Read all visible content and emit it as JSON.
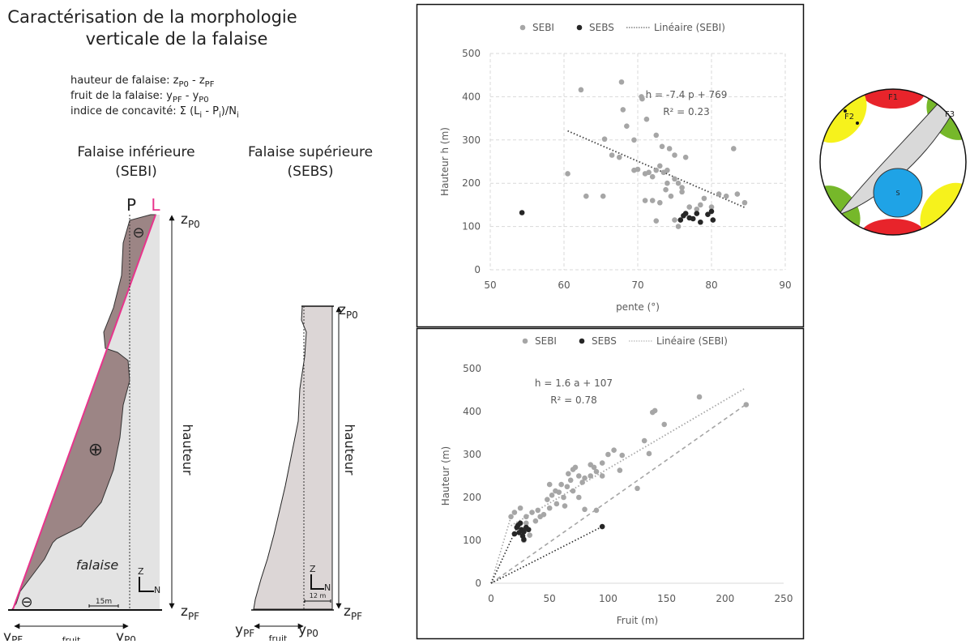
{
  "diagram": {
    "title": [
      "Caractérisation de la morphologie",
      "verticale de la falaise"
    ],
    "formulas": [
      [
        [
          "hauteur de falaise: z",
          "P0"
        ],
        [
          " - z",
          "PF"
        ]
      ],
      [
        [
          "fruit de la falaise: y",
          "PF"
        ],
        [
          " - y",
          "P0"
        ]
      ],
      [
        [
          "indice de concavité: Σ (L",
          "i"
        ],
        [
          " - P",
          "i"
        ],
        [
          ")/N",
          "i"
        ]
      ]
    ],
    "lower": {
      "title": [
        "Falaise inférieure",
        "(SEBI)"
      ],
      "P": "P",
      "L": "L",
      "z_top": [
        "z",
        "P0"
      ],
      "z_bottom": [
        "z",
        "PF"
      ],
      "height": "hauteur",
      "cliff": "falaise",
      "plus": "⊕",
      "minus": [
        "⊖",
        "⊖"
      ],
      "axis_z": "Z",
      "axis_n": "N",
      "scale": "15m",
      "y_left": [
        "y",
        "PF"
      ],
      "y_right": [
        "y",
        "P0"
      ],
      "fruit": "fruit"
    },
    "upper": {
      "title": [
        "Falaise supérieure",
        "(SEBS)"
      ],
      "z_top": [
        "z",
        "P0"
      ],
      "z_bottom": [
        "z",
        "PF"
      ],
      "height": "hauteur",
      "axis_z": "Z",
      "axis_n": "N",
      "scale": "12 m",
      "y_left": [
        "y",
        "PF"
      ],
      "y_right": [
        "y",
        "P0"
      ],
      "fruit": "fruit"
    }
  },
  "chart_data": [
    {
      "type": "scatter",
      "xlabel": "pente (°)",
      "ylabel": "Hauteur h (m)",
      "xlim": [
        50,
        90
      ],
      "ylim": [
        0,
        500
      ],
      "xticks": [
        50,
        60,
        70,
        80,
        90
      ],
      "yticks": [
        0,
        100,
        200,
        300,
        400,
        500
      ],
      "grid": true,
      "series": [
        {
          "name": "SEBI",
          "color": "#a6a6a6",
          "x": [
            62.3,
            67.8,
            68,
            70.5,
            70.6,
            68.5,
            71.2,
            65.5,
            69.5,
            72.5,
            60.5,
            63,
            65.3,
            66.5,
            67.5,
            69.5,
            70,
            71,
            71.5,
            72,
            72.5,
            73,
            73.5,
            74,
            74,
            73.8,
            72,
            71,
            72.5,
            73,
            74.5,
            75,
            75.5,
            76,
            76.5,
            75,
            74.3,
            73.3,
            76,
            77,
            78,
            78.5,
            79,
            80,
            81,
            82,
            83,
            83.5,
            84.5,
            75.5,
            75
          ],
          "values": [
            416,
            434,
            370,
            400,
            395,
            332,
            348,
            302,
            300,
            311,
            222,
            170,
            170,
            265,
            260,
            230,
            232,
            222,
            225,
            215,
            230,
            240,
            225,
            230,
            200,
            185,
            160,
            160,
            113,
            155,
            170,
            210,
            200,
            190,
            260,
            265,
            280,
            285,
            180,
            145,
            140,
            150,
            165,
            145,
            175,
            170,
            280,
            175,
            155,
            100,
            115
          ]
        },
        {
          "name": "SEBS",
          "color": "#262626",
          "x": [
            54.3,
            75.8,
            76.2,
            76.5,
            77,
            77.5,
            78,
            78.5,
            79.5,
            80,
            80.2
          ],
          "values": [
            132,
            115,
            125,
            130,
            120,
            118,
            130,
            110,
            128,
            135,
            115
          ]
        }
      ],
      "trendline": {
        "name": "Linéaire (SEBI)",
        "color": "#404040",
        "x": [
          60.5,
          84.5
        ],
        "values": [
          321,
          144
        ]
      },
      "annotations": [
        "h = -7.4 p + 769",
        "R² = 0.23"
      ]
    },
    {
      "type": "scatter",
      "xlabel": "Fruit (m)",
      "ylabel": "Hauteur (m)",
      "xlim": [
        0,
        250
      ],
      "ylim": [
        0,
        500
      ],
      "xticks": [
        0,
        50,
        100,
        150,
        200,
        250
      ],
      "yticks": [
        0,
        100,
        200,
        300,
        400,
        500
      ],
      "grid": false,
      "series": [
        {
          "name": "SEBI",
          "color": "#a6a6a6",
          "x": [
            178,
            140,
            138,
            148,
            131,
            105,
            218,
            100,
            135,
            110,
            112,
            125,
            90,
            80,
            95,
            85,
            88,
            78,
            70,
            72,
            66,
            75,
            60,
            55,
            58,
            52,
            48,
            50,
            45,
            40,
            35,
            30,
            25,
            20,
            17,
            65,
            68,
            62,
            56,
            42,
            38,
            33,
            28,
            80,
            85,
            90,
            95,
            70,
            75,
            63,
            50,
            30
          ],
          "values": [
            434,
            402,
            398,
            370,
            332,
            310,
            416,
            300,
            302,
            263,
            298,
            221,
            170,
            172,
            280,
            276,
            270,
            235,
            265,
            270,
            255,
            250,
            230,
            215,
            212,
            205,
            195,
            175,
            160,
            170,
            165,
            155,
            175,
            165,
            155,
            225,
            240,
            200,
            185,
            155,
            145,
            112,
            100,
            245,
            250,
            260,
            250,
            215,
            200,
            180,
            230,
            140
          ]
        },
        {
          "name": "SEBS",
          "color": "#262626",
          "x": [
            95,
            20,
            22,
            24,
            25,
            26,
            27,
            28,
            30,
            32,
            28,
            23
          ],
          "values": [
            132,
            115,
            130,
            118,
            140,
            125,
            110,
            120,
            130,
            125,
            102,
            135
          ]
        }
      ],
      "trendline": {
        "name": "Linéaire (SEBI)",
        "color": "#a6a6a6",
        "x": [
          17,
          217
        ],
        "values": [
          134,
          454
        ]
      },
      "reference_lines": [
        {
          "color": "#a6a6a6",
          "style": "dashed",
          "x": [
            0,
            217
          ],
          "values": [
            0,
            415
          ]
        },
        {
          "color": "#a6a6a6",
          "style": "dotted",
          "x": [
            0,
            17
          ],
          "values": [
            0,
            155
          ]
        },
        {
          "color": "#262626",
          "style": "dotted",
          "x": [
            0,
            95
          ],
          "values": [
            0,
            132
          ]
        },
        {
          "color": "#262626",
          "style": "dotted",
          "x": [
            0,
            23
          ],
          "values": [
            0,
            135
          ]
        }
      ],
      "annotations": [
        "h = 1.6 a + 107",
        "R² = 0.78"
      ]
    }
  ],
  "stereonet": {
    "labels": [
      "F1",
      "F2",
      "F3",
      "S"
    ]
  }
}
